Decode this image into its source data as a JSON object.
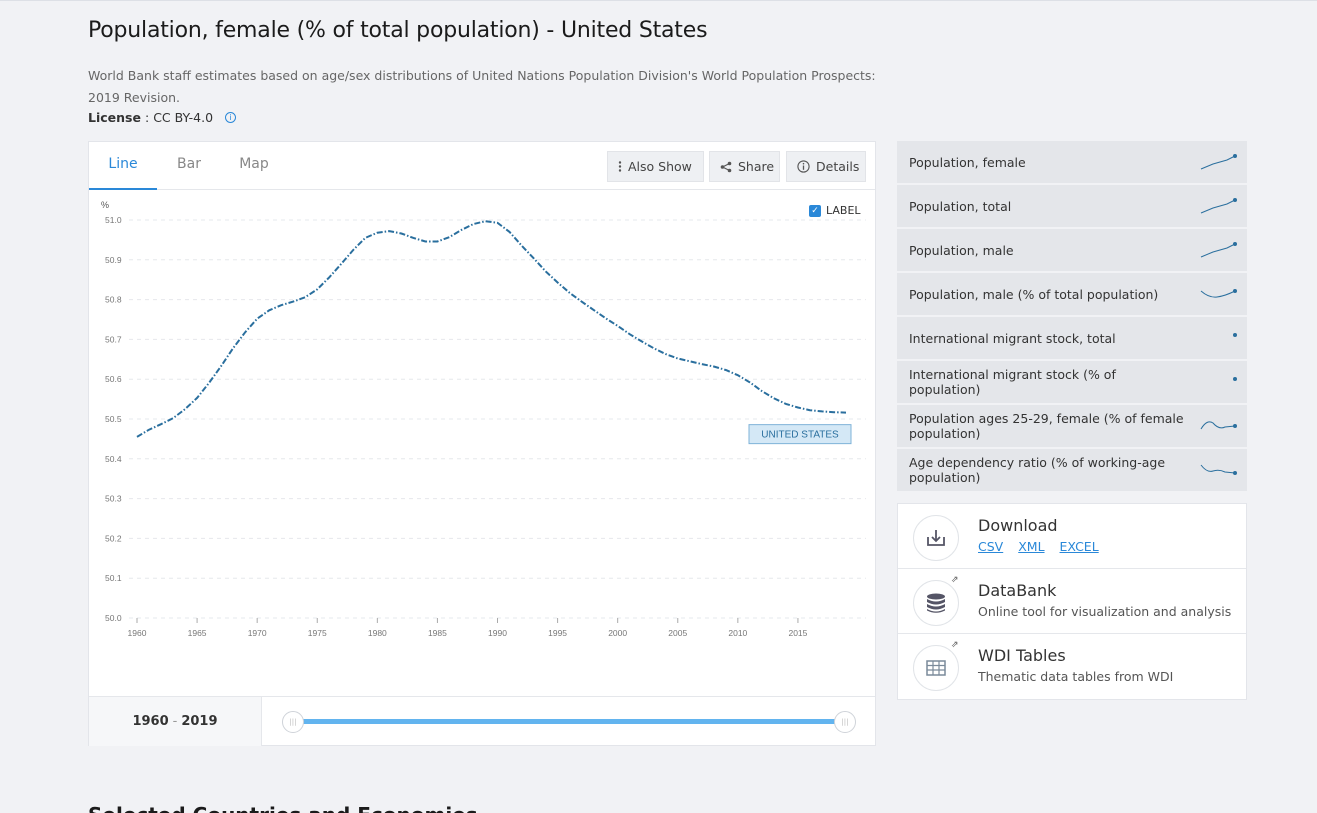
{
  "page": {
    "title": "Population, female (% of total population) - United States",
    "source": "World Bank staff estimates based on age/sex distributions of United Nations Population Division's World Population Prospects: 2019 Revision.",
    "license_label": "License",
    "license_sep": " : ",
    "license_value": "CC BY-4.0",
    "next_heading": "Selected Countries and Economies"
  },
  "tabs": [
    {
      "label": "Line",
      "active": true
    },
    {
      "label": "Bar",
      "active": false
    },
    {
      "label": "Map",
      "active": false
    }
  ],
  "toolbar": {
    "also_show": "Also Show",
    "share": "Share",
    "details": "Details"
  },
  "label_toggle": {
    "label": "LABEL",
    "checked": true
  },
  "range": {
    "start": "1960",
    "sep": "-",
    "end": "2019"
  },
  "indicators": [
    {
      "label": "Population, female",
      "spark": "rise"
    },
    {
      "label": "Population, total",
      "spark": "rise"
    },
    {
      "label": "Population, male",
      "spark": "rise"
    },
    {
      "label": "Population, male (% of total population)",
      "spark": "dip"
    },
    {
      "label": "International migrant stock, total",
      "spark": "dot"
    },
    {
      "label": "International migrant stock (% of population)",
      "spark": "dot"
    },
    {
      "label": "Population ages 25-29, female (% of female population)",
      "spark": "wave"
    },
    {
      "label": "Age dependency ratio (% of working-age population)",
      "spark": "wave2"
    }
  ],
  "resources": {
    "download": {
      "title": "Download",
      "links": [
        "CSV",
        "XML",
        "EXCEL"
      ]
    },
    "databank": {
      "title": "DataBank",
      "subtitle": "Online tool for visualization and analysis"
    },
    "wdi": {
      "title": "WDI Tables",
      "subtitle": "Thematic data tables from WDI"
    }
  },
  "colors": {
    "accent": "#2a88d8",
    "line": "#2a6f9e",
    "slider": "#62b4ef"
  },
  "chart_data": {
    "type": "line",
    "ylabel": "%",
    "ylim": [
      50.0,
      51.0
    ],
    "yticks": [
      "50.0",
      "50.1",
      "50.2",
      "50.3",
      "50.4",
      "50.5",
      "50.6",
      "50.7",
      "50.8",
      "50.9",
      "51.0"
    ],
    "xticks": [
      "1960",
      "1965",
      "1970",
      "1975",
      "1980",
      "1985",
      "1990",
      "1995",
      "2000",
      "2005",
      "2010",
      "2015"
    ],
    "grid": true,
    "series": [
      {
        "name": "UNITED STATES",
        "x": [
          1960,
          1961,
          1962,
          1963,
          1964,
          1965,
          1966,
          1967,
          1968,
          1969,
          1970,
          1971,
          1972,
          1973,
          1974,
          1975,
          1976,
          1977,
          1978,
          1979,
          1980,
          1981,
          1982,
          1983,
          1984,
          1985,
          1986,
          1987,
          1988,
          1989,
          1990,
          1991,
          1992,
          1993,
          1994,
          1995,
          1996,
          1997,
          1998,
          1999,
          2000,
          2001,
          2002,
          2003,
          2004,
          2005,
          2006,
          2007,
          2008,
          2009,
          2010,
          2011,
          2012,
          2013,
          2014,
          2015,
          2016,
          2017,
          2018,
          2019
        ],
        "values": [
          50.455,
          50.473,
          50.487,
          50.502,
          50.525,
          50.553,
          50.591,
          50.633,
          50.678,
          50.718,
          50.752,
          50.773,
          50.786,
          50.795,
          50.806,
          50.826,
          50.856,
          50.89,
          50.925,
          50.955,
          50.968,
          50.972,
          50.966,
          50.955,
          50.946,
          50.946,
          50.957,
          50.975,
          50.99,
          50.997,
          50.993,
          50.97,
          50.936,
          50.904,
          50.871,
          50.843,
          50.817,
          50.795,
          50.774,
          50.753,
          50.734,
          50.713,
          50.695,
          50.678,
          50.663,
          50.652,
          50.645,
          50.638,
          50.632,
          50.623,
          50.61,
          50.592,
          50.57,
          50.552,
          50.538,
          50.529,
          50.522,
          50.519,
          50.517,
          50.516
        ]
      }
    ]
  }
}
